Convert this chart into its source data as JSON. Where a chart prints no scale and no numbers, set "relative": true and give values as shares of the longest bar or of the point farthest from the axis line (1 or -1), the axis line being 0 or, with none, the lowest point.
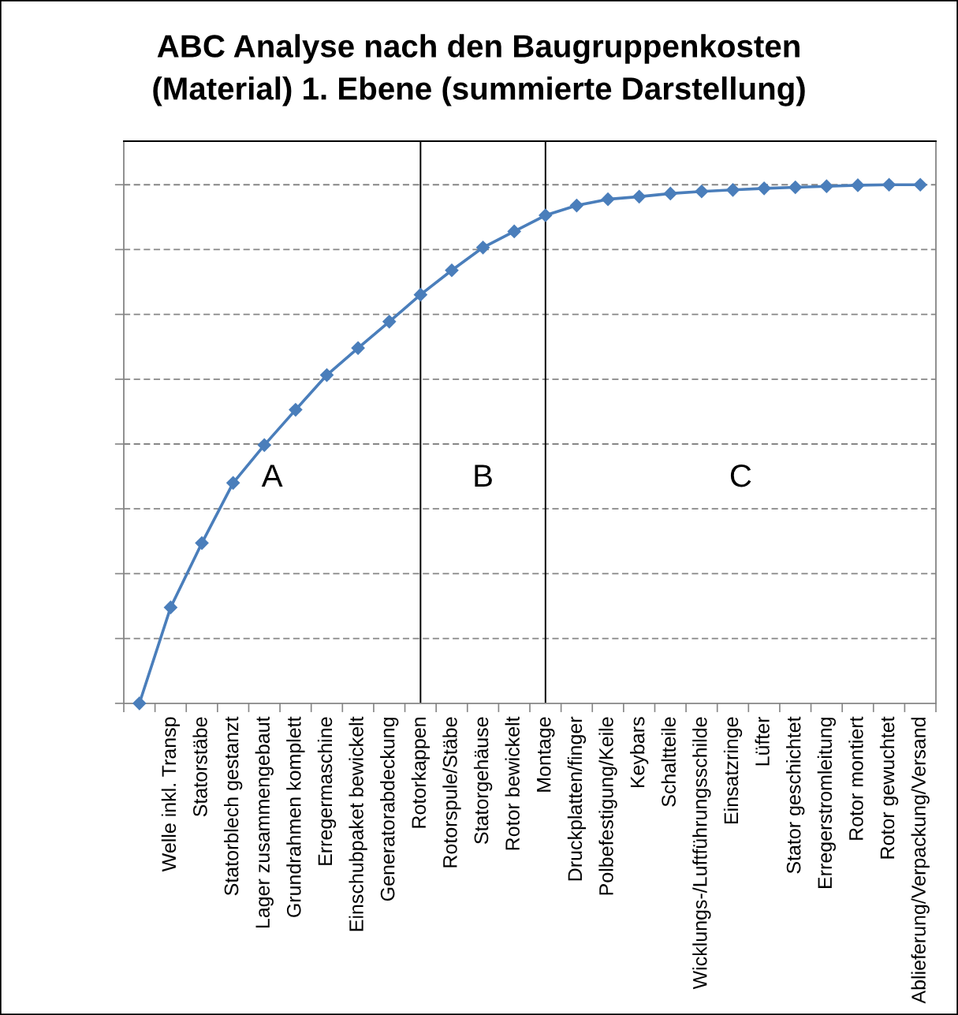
{
  "chart_data": {
    "type": "line",
    "title": "ABC Analyse nach den Baugruppenkosten\n(Material) 1. Ebene (summierte Darstellung)",
    "categories": [
      null,
      "Welle inkl. Transp",
      "Statorstäbe",
      "Statorblech gestanzt",
      "Lager zusammengebaut",
      "Grundrahmen komplett",
      "Erregermaschine",
      "Einschubpaket bewickelt",
      "Generatorabdeckung",
      "Rotorkappen",
      "Rotorspule/Stäbe",
      "Statorgehäuse",
      "Rotor bewickelt",
      "Montage",
      "Druckplatten/finger",
      "Polbefestigung/Keile",
      "Keybars",
      "Schaltteile",
      "Wicklungs-/Luftführungsschilde",
      "Einsatzringe",
      "Lüfter",
      "Stator geschichtet",
      "Erregerstromleitung",
      "Rotor montiert",
      "Rotor gewuchtet",
      "Ablieferung/Verpackung/Versand"
    ],
    "relative": true,
    "series": [
      {
        "color": "#4a7ebb",
        "values": [
          0,
          0.185,
          0.309,
          0.425,
          0.498,
          0.566,
          0.633,
          0.685,
          0.736,
          0.788,
          0.835,
          0.879,
          0.91,
          0.941,
          0.96,
          0.972,
          0.977,
          0.983,
          0.987,
          0.99,
          0.993,
          0.995,
          0.997,
          0.999,
          1.0,
          1.0
        ]
      }
    ],
    "marker": "diamond",
    "line_style": "solid",
    "grid": "y",
    "tick_labels": "x",
    "ref_lines": [
      {
        "axis": "x",
        "value": "Rotorkappen",
        "color": "#000000"
      },
      {
        "axis": "x",
        "value": "Montage",
        "color": "#000000"
      }
    ],
    "annotations": [
      "A",
      "B",
      "C"
    ]
  }
}
